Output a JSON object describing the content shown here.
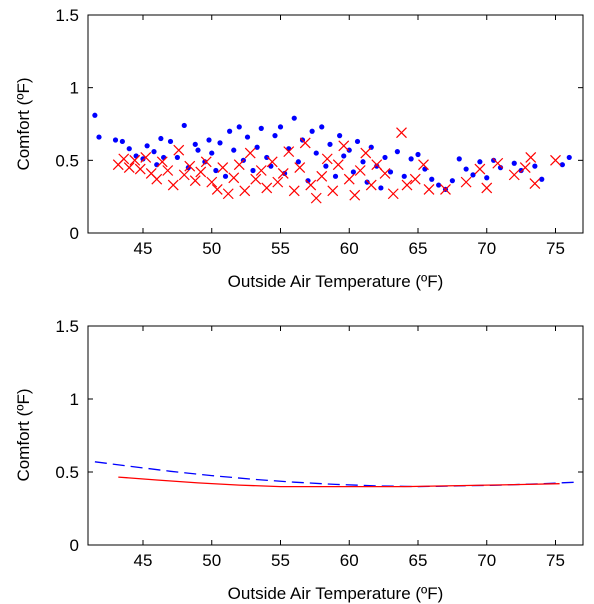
{
  "chart_data": [
    {
      "type": "scatter",
      "xlabel": "Outside Air Temperature (ºF)",
      "ylabel": "Comfort (ºF)",
      "xlim": [
        41,
        77
      ],
      "ylim": [
        0,
        1.5
      ],
      "xticks": [
        45,
        50,
        55,
        60,
        65,
        70,
        75
      ],
      "yticks": [
        0,
        0.5,
        1,
        1.5
      ],
      "ytick_labels": [
        "0",
        "0.5",
        "1",
        "1.5"
      ],
      "grid": false,
      "series": [
        {
          "marker": "dot",
          "color": "#0000ff",
          "points": [
            [
              41.5,
              0.81
            ],
            [
              41.8,
              0.66
            ],
            [
              43.0,
              0.64
            ],
            [
              43.5,
              0.63
            ],
            [
              44.0,
              0.58
            ],
            [
              44.5,
              0.53
            ],
            [
              45.0,
              0.51
            ],
            [
              45.3,
              0.6
            ],
            [
              45.8,
              0.56
            ],
            [
              46.0,
              0.47
            ],
            [
              46.3,
              0.65
            ],
            [
              46.5,
              0.52
            ],
            [
              47.0,
              0.63
            ],
            [
              47.5,
              0.52
            ],
            [
              48.0,
              0.74
            ],
            [
              48.3,
              0.45
            ],
            [
              48.8,
              0.61
            ],
            [
              49.0,
              0.57
            ],
            [
              49.5,
              0.49
            ],
            [
              49.8,
              0.64
            ],
            [
              50.0,
              0.55
            ],
            [
              50.3,
              0.43
            ],
            [
              50.6,
              0.62
            ],
            [
              51.0,
              0.39
            ],
            [
              51.3,
              0.7
            ],
            [
              51.6,
              0.57
            ],
            [
              52.0,
              0.73
            ],
            [
              52.3,
              0.5
            ],
            [
              52.6,
              0.66
            ],
            [
              53.0,
              0.43
            ],
            [
              53.3,
              0.59
            ],
            [
              53.6,
              0.72
            ],
            [
              54.0,
              0.52
            ],
            [
              54.3,
              0.46
            ],
            [
              54.6,
              0.67
            ],
            [
              55.0,
              0.73
            ],
            [
              55.3,
              0.41
            ],
            [
              55.6,
              0.58
            ],
            [
              56.0,
              0.79
            ],
            [
              56.3,
              0.49
            ],
            [
              56.6,
              0.64
            ],
            [
              57.0,
              0.36
            ],
            [
              57.3,
              0.7
            ],
            [
              57.6,
              0.55
            ],
            [
              58.0,
              0.73
            ],
            [
              58.3,
              0.46
            ],
            [
              58.6,
              0.61
            ],
            [
              59.0,
              0.39
            ],
            [
              59.3,
              0.67
            ],
            [
              59.6,
              0.53
            ],
            [
              60.0,
              0.57
            ],
            [
              60.3,
              0.42
            ],
            [
              60.6,
              0.63
            ],
            [
              61.0,
              0.49
            ],
            [
              61.3,
              0.35
            ],
            [
              61.6,
              0.59
            ],
            [
              62.0,
              0.46
            ],
            [
              62.3,
              0.31
            ],
            [
              62.6,
              0.52
            ],
            [
              63.0,
              0.42
            ],
            [
              63.5,
              0.56
            ],
            [
              64.0,
              0.39
            ],
            [
              64.5,
              0.51
            ],
            [
              65.0,
              0.54
            ],
            [
              65.5,
              0.44
            ],
            [
              66.0,
              0.37
            ],
            [
              66.5,
              0.33
            ],
            [
              67.0,
              0.3
            ],
            [
              67.5,
              0.36
            ],
            [
              68.0,
              0.51
            ],
            [
              68.5,
              0.44
            ],
            [
              69.0,
              0.4
            ],
            [
              69.5,
              0.49
            ],
            [
              70.0,
              0.38
            ],
            [
              70.5,
              0.5
            ],
            [
              71.0,
              0.45
            ],
            [
              72.0,
              0.48
            ],
            [
              72.5,
              0.43
            ],
            [
              73.5,
              0.46
            ],
            [
              74.0,
              0.37
            ],
            [
              75.5,
              0.47
            ],
            [
              76.0,
              0.52
            ]
          ]
        },
        {
          "marker": "x",
          "color": "#ff0000",
          "points": [
            [
              43.2,
              0.47
            ],
            [
              43.6,
              0.51
            ],
            [
              44.0,
              0.45
            ],
            [
              44.4,
              0.5
            ],
            [
              44.8,
              0.44
            ],
            [
              45.2,
              0.52
            ],
            [
              45.6,
              0.41
            ],
            [
              46.0,
              0.37
            ],
            [
              46.4,
              0.49
            ],
            [
              46.8,
              0.43
            ],
            [
              47.2,
              0.33
            ],
            [
              47.6,
              0.57
            ],
            [
              48.0,
              0.4
            ],
            [
              48.4,
              0.46
            ],
            [
              48.8,
              0.36
            ],
            [
              49.2,
              0.42
            ],
            [
              49.6,
              0.49
            ],
            [
              50.0,
              0.35
            ],
            [
              50.4,
              0.3
            ],
            [
              50.8,
              0.45
            ],
            [
              51.2,
              0.27
            ],
            [
              51.6,
              0.38
            ],
            [
              52.0,
              0.47
            ],
            [
              52.4,
              0.29
            ],
            [
              52.8,
              0.55
            ],
            [
              53.2,
              0.37
            ],
            [
              53.6,
              0.43
            ],
            [
              54.0,
              0.31
            ],
            [
              54.4,
              0.49
            ],
            [
              54.8,
              0.35
            ],
            [
              55.2,
              0.41
            ],
            [
              55.6,
              0.56
            ],
            [
              56.0,
              0.29
            ],
            [
              56.4,
              0.45
            ],
            [
              56.8,
              0.62
            ],
            [
              57.2,
              0.33
            ],
            [
              57.6,
              0.24
            ],
            [
              58.0,
              0.39
            ],
            [
              58.4,
              0.51
            ],
            [
              58.8,
              0.29
            ],
            [
              59.2,
              0.47
            ],
            [
              59.6,
              0.6
            ],
            [
              60.0,
              0.37
            ],
            [
              60.4,
              0.26
            ],
            [
              60.8,
              0.43
            ],
            [
              61.2,
              0.55
            ],
            [
              61.6,
              0.33
            ],
            [
              62.0,
              0.47
            ],
            [
              62.6,
              0.41
            ],
            [
              63.2,
              0.27
            ],
            [
              63.8,
              0.69
            ],
            [
              64.2,
              0.33
            ],
            [
              64.8,
              0.37
            ],
            [
              65.4,
              0.47
            ],
            [
              65.8,
              0.3
            ],
            [
              67.0,
              0.3
            ],
            [
              68.5,
              0.35
            ],
            [
              69.5,
              0.44
            ],
            [
              70.0,
              0.31
            ],
            [
              70.8,
              0.48
            ],
            [
              72.0,
              0.4
            ],
            [
              72.8,
              0.45
            ],
            [
              73.2,
              0.52
            ],
            [
              73.5,
              0.34
            ],
            [
              75.0,
              0.5
            ]
          ]
        }
      ]
    },
    {
      "type": "line",
      "xlabel": "Outside Air Temperature (ºF)",
      "ylabel": "Comfort (ºF)",
      "xlim": [
        41,
        77
      ],
      "ylim": [
        0,
        1.5
      ],
      "xticks": [
        45,
        50,
        55,
        60,
        65,
        70,
        75
      ],
      "yticks": [
        0,
        0.5,
        1,
        1.5
      ],
      "ytick_labels": [
        "0",
        "0.5",
        "1",
        "1.5"
      ],
      "grid": false,
      "series": [
        {
          "style": "dashed",
          "color": "#0000ff",
          "x": [
            41.5,
            44,
            47,
            50,
            53,
            56,
            59,
            62,
            65,
            68,
            71,
            74,
            76.5
          ],
          "y": [
            0.57,
            0.54,
            0.505,
            0.475,
            0.45,
            0.43,
            0.415,
            0.405,
            0.4,
            0.405,
            0.41,
            0.42,
            0.43
          ]
        },
        {
          "style": "solid",
          "color": "#ff0000",
          "x": [
            43.2,
            46,
            49,
            52,
            55,
            58,
            61,
            64,
            67,
            70,
            73,
            75.3
          ],
          "y": [
            0.465,
            0.445,
            0.425,
            0.41,
            0.4,
            0.4,
            0.4,
            0.4,
            0.405,
            0.41,
            0.415,
            0.42
          ]
        }
      ]
    }
  ]
}
